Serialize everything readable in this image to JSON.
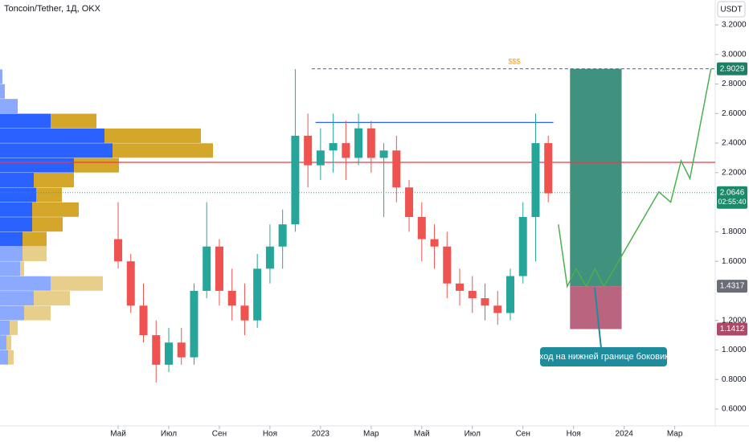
{
  "header": {
    "title": "Toncoin/Tether, 1Д, OKX",
    "currency": "USDT",
    "marker": "$$$",
    "note": "Вход на нижней границе боковика"
  },
  "chart_data": {
    "type": "candlestick",
    "x": [
      0,
      0.5,
      1,
      1.5,
      2,
      2.5,
      3,
      3.5,
      4,
      4.5,
      5,
      5.5,
      6,
      6.5,
      7,
      7.5,
      8,
      8.5,
      9,
      9.5,
      10,
      10.5,
      11,
      11.5,
      12,
      12.5,
      13,
      13.5,
      14,
      14.5,
      15,
      15.5,
      16,
      16.5,
      17
    ],
    "open": [
      1.75,
      1.6,
      1.3,
      1.1,
      0.9,
      1.05,
      0.95,
      1.4,
      1.7,
      1.4,
      1.3,
      1.2,
      1.55,
      1.7,
      1.85,
      2.45,
      2.25,
      2.35,
      2.4,
      2.3,
      2.5,
      2.3,
      2.35,
      2.1,
      1.9,
      1.75,
      1.7,
      1.45,
      1.4,
      1.35,
      1.3,
      1.25,
      1.5,
      1.9,
      2.4
    ],
    "high": [
      2.0,
      1.65,
      1.45,
      1.2,
      1.15,
      1.15,
      1.45,
      2.0,
      1.75,
      1.55,
      1.45,
      1.65,
      1.85,
      1.95,
      2.9,
      2.6,
      2.5,
      2.6,
      2.55,
      2.6,
      2.55,
      2.4,
      2.45,
      2.15,
      2.0,
      1.85,
      1.8,
      1.55,
      1.5,
      1.45,
      1.4,
      1.55,
      2.0,
      2.6,
      2.45
    ],
    "low": [
      1.55,
      1.25,
      1.05,
      0.78,
      0.85,
      0.9,
      0.9,
      1.35,
      1.3,
      1.2,
      1.1,
      1.15,
      1.45,
      1.55,
      1.8,
      2.1,
      2.15,
      2.2,
      2.15,
      2.25,
      2.2,
      1.9,
      2.0,
      1.8,
      1.6,
      1.55,
      1.35,
      1.3,
      1.25,
      1.2,
      1.17,
      1.2,
      1.45,
      1.6,
      2.0
    ],
    "close": [
      1.6,
      1.3,
      1.1,
      0.9,
      1.05,
      0.95,
      1.4,
      1.7,
      1.4,
      1.3,
      1.2,
      1.55,
      1.7,
      1.85,
      2.45,
      2.25,
      2.35,
      2.4,
      2.3,
      2.5,
      2.3,
      2.35,
      2.1,
      1.9,
      1.75,
      1.7,
      1.45,
      1.4,
      1.35,
      1.3,
      1.25,
      1.5,
      1.9,
      2.4,
      2.06
    ],
    "up_color": "#26a69a",
    "down_color": "#ef5350",
    "xlim": [
      -4.67,
      23.6
    ],
    "xticks": [
      {
        "value": 0,
        "label": "Май"
      },
      {
        "value": 2,
        "label": "Июл"
      },
      {
        "value": 4,
        "label": "Сен"
      },
      {
        "value": 6,
        "label": "Ноя"
      },
      {
        "value": 8,
        "label": "2023"
      },
      {
        "value": 10,
        "label": "Мар"
      },
      {
        "value": 12,
        "label": "Май"
      },
      {
        "value": 14,
        "label": "Июл"
      },
      {
        "value": 16,
        "label": "Сен"
      },
      {
        "value": 18,
        "label": "Ноя"
      },
      {
        "value": 20,
        "label": "2024"
      },
      {
        "value": 22,
        "label": "Мар"
      }
    ],
    "ylim": [
      0.6,
      3.2
    ],
    "yticks": [
      {
        "value": 0.6,
        "label": "0.6000"
      },
      {
        "value": 0.8,
        "label": "0.8000"
      },
      {
        "value": 1.0,
        "label": "1.0000"
      },
      {
        "value": 1.2,
        "label": "1.2000"
      },
      {
        "value": 1.6,
        "label": "1.6000"
      },
      {
        "value": 1.8,
        "label": "1.8000"
      },
      {
        "value": 2.2,
        "label": "2.2000"
      },
      {
        "value": 2.4,
        "label": "2.4000"
      },
      {
        "value": 2.6,
        "label": "2.6000"
      },
      {
        "value": 2.8,
        "label": "2.8000"
      },
      {
        "value": 3.0,
        "label": "3.0000"
      },
      {
        "value": 3.2,
        "label": "3.2000"
      }
    ],
    "volume_profile": {
      "levels": [
        2.85,
        2.75,
        2.65,
        2.55,
        2.45,
        2.35,
        2.25,
        2.15,
        2.05,
        1.95,
        1.85,
        1.75,
        1.65,
        1.55,
        1.45,
        1.35,
        1.25,
        1.15,
        1.05,
        0.95
      ],
      "up": [
        3,
        6,
        22,
        63,
        130,
        140,
        92,
        42,
        45,
        40,
        40,
        28,
        28,
        25,
        63,
        42,
        30,
        12,
        8,
        10
      ],
      "down": [
        0,
        0,
        0,
        57,
        120,
        125,
        56,
        50,
        32,
        58,
        38,
        30,
        30,
        5,
        65,
        45,
        33,
        10,
        6,
        7
      ],
      "up_color": "#2962ff",
      "down_color": "#d4a62a"
    },
    "lines": [
      {
        "value": 2.27,
        "start": -4.67,
        "end": 23.6,
        "color": "#f23645",
        "style": "solid"
      },
      {
        "value": 2.54,
        "start": 7.8,
        "end": 17.2,
        "color": "#2962ff",
        "style": "solid"
      },
      {
        "value": 2.9029,
        "start": 7.65,
        "end": 23.6,
        "color": "#2962ff",
        "style": "dashed"
      },
      {
        "value": 2.0646,
        "start": -4.67,
        "end": 23.6,
        "color": "#26a69a",
        "style": "dotted"
      }
    ],
    "position": {
      "x": [
        17.86,
        19.9
      ],
      "entry": 1.4317,
      "target": 2.9029,
      "stop": 1.1412,
      "target_color": "#1e7e66",
      "stop_color": "#ad4a68"
    },
    "projection": {
      "x": [
        17.4,
        17.75,
        18.1,
        18.5,
        18.85,
        19.2,
        21.37,
        21.84,
        22.25,
        22.6,
        23.43
      ],
      "values": [
        1.85,
        1.43,
        1.55,
        1.43,
        1.55,
        1.43,
        2.07,
        2.0,
        2.28,
        2.16,
        2.9029
      ],
      "color": "#4caf50"
    },
    "last_price": {
      "value": 2.0646,
      "countdown": "02:55:40",
      "color": "#1b8a6b"
    },
    "entry_label_color": "#6a6d78"
  }
}
